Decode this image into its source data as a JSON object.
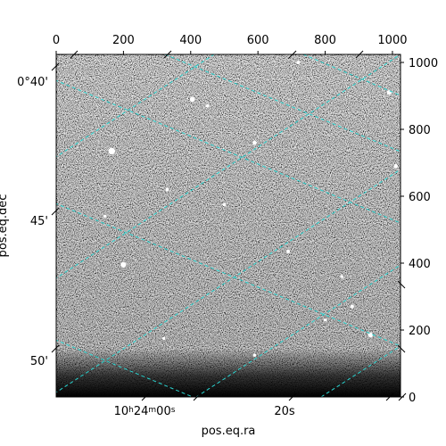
{
  "chart_data": {
    "type": "image",
    "colors": {
      "grid": "#2ad4d0",
      "background": "#ffffff",
      "image_high": "#e8e8e8",
      "image_low": "#101010"
    },
    "image_pixels": {
      "x": [
        0,
        1024
      ],
      "y": [
        0,
        1024
      ]
    },
    "pixel_axis_ticks": {
      "top": [
        "0",
        "200",
        "400",
        "600",
        "800",
        "1000"
      ],
      "right": [
        "0",
        "200",
        "400",
        "600",
        "800",
        "1000"
      ]
    },
    "world_axis_ticks": {
      "left": [
        "0°40'",
        "45'",
        "50'"
      ],
      "bottom_ra": [
        {
          "base": "10",
          "h": "h",
          "m": "24",
          "mlabel": "m",
          "s": "00",
          "slabel": "s"
        }
      ],
      "bottom_plain": [
        "20s"
      ]
    },
    "xlabel": "pos.eq.ra",
    "ylabel": "pos.eq.dec",
    "grid": true,
    "stars": [
      {
        "x": 165,
        "y": 735,
        "mag": 3
      },
      {
        "x": 405,
        "y": 890,
        "mag": 2
      },
      {
        "x": 450,
        "y": 870,
        "mag": 1
      },
      {
        "x": 590,
        "y": 760,
        "mag": 1.5
      },
      {
        "x": 200,
        "y": 395,
        "mag": 2.2
      },
      {
        "x": 935,
        "y": 185,
        "mag": 2
      },
      {
        "x": 880,
        "y": 270,
        "mag": 1.2
      },
      {
        "x": 690,
        "y": 435,
        "mag": 1.2
      },
      {
        "x": 500,
        "y": 575,
        "mag": 1
      },
      {
        "x": 990,
        "y": 910,
        "mag": 1.8
      },
      {
        "x": 330,
        "y": 620,
        "mag": 1
      },
      {
        "x": 720,
        "y": 1000,
        "mag": 1
      },
      {
        "x": 800,
        "y": 230,
        "mag": 0.9
      },
      {
        "x": 1010,
        "y": 690,
        "mag": 1.5
      },
      {
        "x": 590,
        "y": 125,
        "mag": 0.9
      },
      {
        "x": 850,
        "y": 360,
        "mag": 0.9
      },
      {
        "x": 320,
        "y": 175,
        "mag": 0.8
      },
      {
        "x": 145,
        "y": 540,
        "mag": 0.8
      }
    ]
  }
}
